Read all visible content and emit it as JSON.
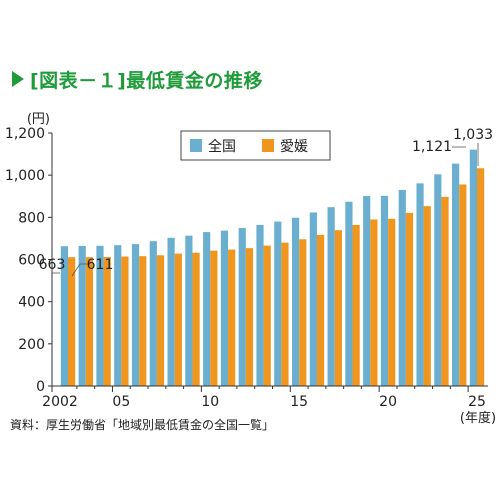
{
  "header": {
    "title": "[図表－１]最低賃金の推移"
  },
  "source": "資料：厚生労働省「地域別最低賃金の全国一覧」",
  "colors": {
    "title": "#1f9b3a",
    "national": "#6aafcf",
    "ehime": "#f0961e"
  },
  "chart_data": {
    "type": "bar",
    "xlabel": "",
    "ylabel": "",
    "y_unit": "(円)",
    "x_unit": "(年度)",
    "ylim": [
      0,
      1200
    ],
    "yticks": [
      0,
      200,
      400,
      600,
      800,
      "1,000",
      "1,200"
    ],
    "ytick_values": [
      0,
      200,
      400,
      600,
      800,
      1000,
      1200
    ],
    "grid": false,
    "legend_position": "top-center",
    "categories": [
      2002,
      2003,
      2004,
      2005,
      2006,
      2007,
      2008,
      2009,
      2010,
      2011,
      2012,
      2013,
      2014,
      2015,
      2016,
      2017,
      2018,
      2019,
      2020,
      2021,
      2022,
      2023,
      2024,
      2025
    ],
    "xtick_labels": [
      {
        "year": 2002,
        "label": "2002"
      },
      {
        "year": 2005,
        "label": "05"
      },
      {
        "year": 2010,
        "label": "10"
      },
      {
        "year": 2015,
        "label": "15"
      },
      {
        "year": 2020,
        "label": "20"
      },
      {
        "year": 2025,
        "label": "25"
      }
    ],
    "series": [
      {
        "name": "全国",
        "values": [
          663,
          664,
          665,
          668,
          673,
          687,
          703,
          713,
          730,
          737,
          749,
          764,
          780,
          798,
          823,
          848,
          874,
          901,
          902,
          930,
          961,
          1004,
          1055,
          1121
        ]
      },
      {
        "name": "愛媛",
        "values": [
          611,
          611,
          612,
          614,
          616,
          620,
          628,
          632,
          642,
          647,
          654,
          666,
          680,
          696,
          717,
          739,
          764,
          790,
          793,
          821,
          853,
          897,
          956,
          1033
        ]
      }
    ],
    "annotations": [
      {
        "series": 0,
        "index": 0,
        "text": "663"
      },
      {
        "series": 1,
        "index": 0,
        "text": "611"
      },
      {
        "series": 0,
        "index": 23,
        "text": "1,121"
      },
      {
        "series": 1,
        "index": 23,
        "text": "1,033"
      }
    ]
  }
}
